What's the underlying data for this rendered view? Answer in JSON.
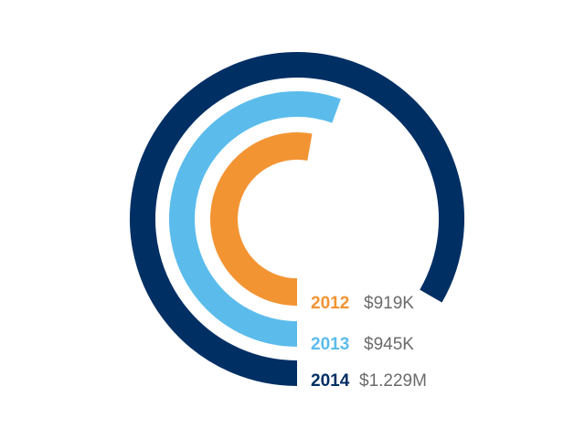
{
  "chart_data": {
    "type": "radial-bar",
    "unit": "USD",
    "series": [
      {
        "label": "2012",
        "value_text": "$919K",
        "value": 919000,
        "color": "#f39433"
      },
      {
        "label": "2013",
        "value_text": "$945K",
        "value": 945000,
        "color": "#5bbcec"
      },
      {
        "label": "2014",
        "value_text": "$1.229M",
        "value": 1229000,
        "color": "#002f64"
      }
    ],
    "value_color": "#6b6b6b"
  }
}
